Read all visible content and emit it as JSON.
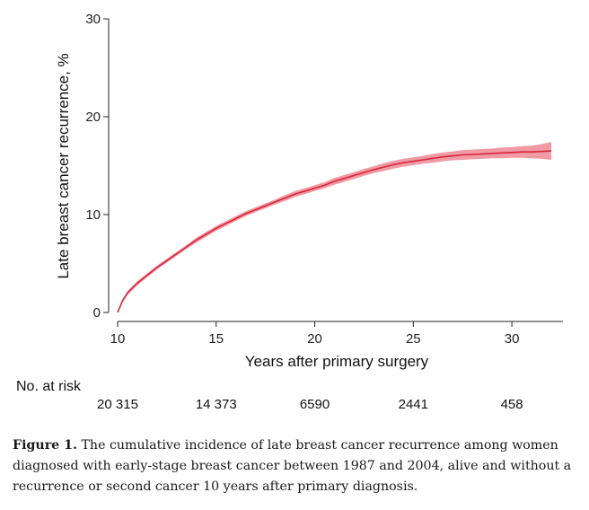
{
  "chart_data": {
    "type": "line",
    "xlabel": "Years after primary surgery",
    "ylabel": "Late breast cancer recurrence, %",
    "xlim": [
      10,
      32
    ],
    "ylim": [
      0,
      30
    ],
    "x_ticks": [
      10,
      15,
      20,
      25,
      30
    ],
    "y_ticks": [
      0,
      10,
      20,
      30
    ],
    "grid": false,
    "line_color": "#d7263d",
    "band_color": "#f29aa3",
    "series": [
      {
        "x": [
          10,
          10.25,
          10.5,
          11,
          11.5,
          12,
          12.5,
          13,
          13.5,
          14,
          14.5,
          15,
          15.5,
          16,
          16.5,
          17,
          17.5,
          18,
          18.5,
          19,
          19.5,
          20,
          20.5,
          21,
          21.5,
          22,
          22.5,
          23,
          23.5,
          24,
          24.5,
          25,
          25.5,
          26,
          26.5,
          27,
          27.5,
          28,
          28.5,
          29,
          29.5,
          30,
          30.5,
          31,
          31.5,
          32
        ],
        "y": [
          0,
          1.2,
          2.0,
          3.0,
          3.8,
          4.6,
          5.3,
          6.0,
          6.7,
          7.4,
          8.0,
          8.6,
          9.1,
          9.6,
          10.1,
          10.5,
          10.9,
          11.3,
          11.7,
          12.1,
          12.4,
          12.7,
          13.0,
          13.4,
          13.7,
          14.0,
          14.3,
          14.6,
          14.85,
          15.1,
          15.3,
          15.45,
          15.6,
          15.75,
          15.9,
          16.0,
          16.1,
          16.15,
          16.2,
          16.25,
          16.3,
          16.35,
          16.4,
          16.4,
          16.45,
          16.5
        ],
        "ci_low": [
          0,
          1.05,
          1.8,
          2.8,
          3.6,
          4.4,
          5.1,
          5.8,
          6.5,
          7.15,
          7.75,
          8.35,
          8.85,
          9.35,
          9.85,
          10.25,
          10.65,
          11.05,
          11.4,
          11.8,
          12.1,
          12.4,
          12.7,
          13.05,
          13.35,
          13.65,
          13.95,
          14.25,
          14.45,
          14.7,
          14.9,
          15.05,
          15.2,
          15.3,
          15.45,
          15.55,
          15.6,
          15.65,
          15.7,
          15.75,
          15.75,
          15.8,
          15.8,
          15.75,
          15.7,
          15.6
        ],
        "ci_high": [
          0,
          1.35,
          2.2,
          3.2,
          4.0,
          4.8,
          5.5,
          6.2,
          6.9,
          7.65,
          8.25,
          8.85,
          9.35,
          9.85,
          10.35,
          10.75,
          11.15,
          11.55,
          12.0,
          12.4,
          12.7,
          13.0,
          13.3,
          13.75,
          14.05,
          14.35,
          14.65,
          14.95,
          15.25,
          15.5,
          15.7,
          15.85,
          16.0,
          16.2,
          16.35,
          16.45,
          16.6,
          16.65,
          16.7,
          16.75,
          16.85,
          16.9,
          17.0,
          17.05,
          17.2,
          17.4
        ]
      }
    ],
    "risk_table": {
      "title": "No. at risk",
      "x": [
        10,
        15,
        20,
        25,
        30
      ],
      "counts": [
        "20 315",
        "14 373",
        "6590",
        "2441",
        "458"
      ]
    }
  },
  "caption": {
    "label": "Figure 1.",
    "text": " The cumulative incidence of late breast cancer recurrence among women diagnosed with early-stage breast cancer between 1987 and 2004, alive and without a recurrence or second cancer 10 years after primary diagnosis."
  }
}
